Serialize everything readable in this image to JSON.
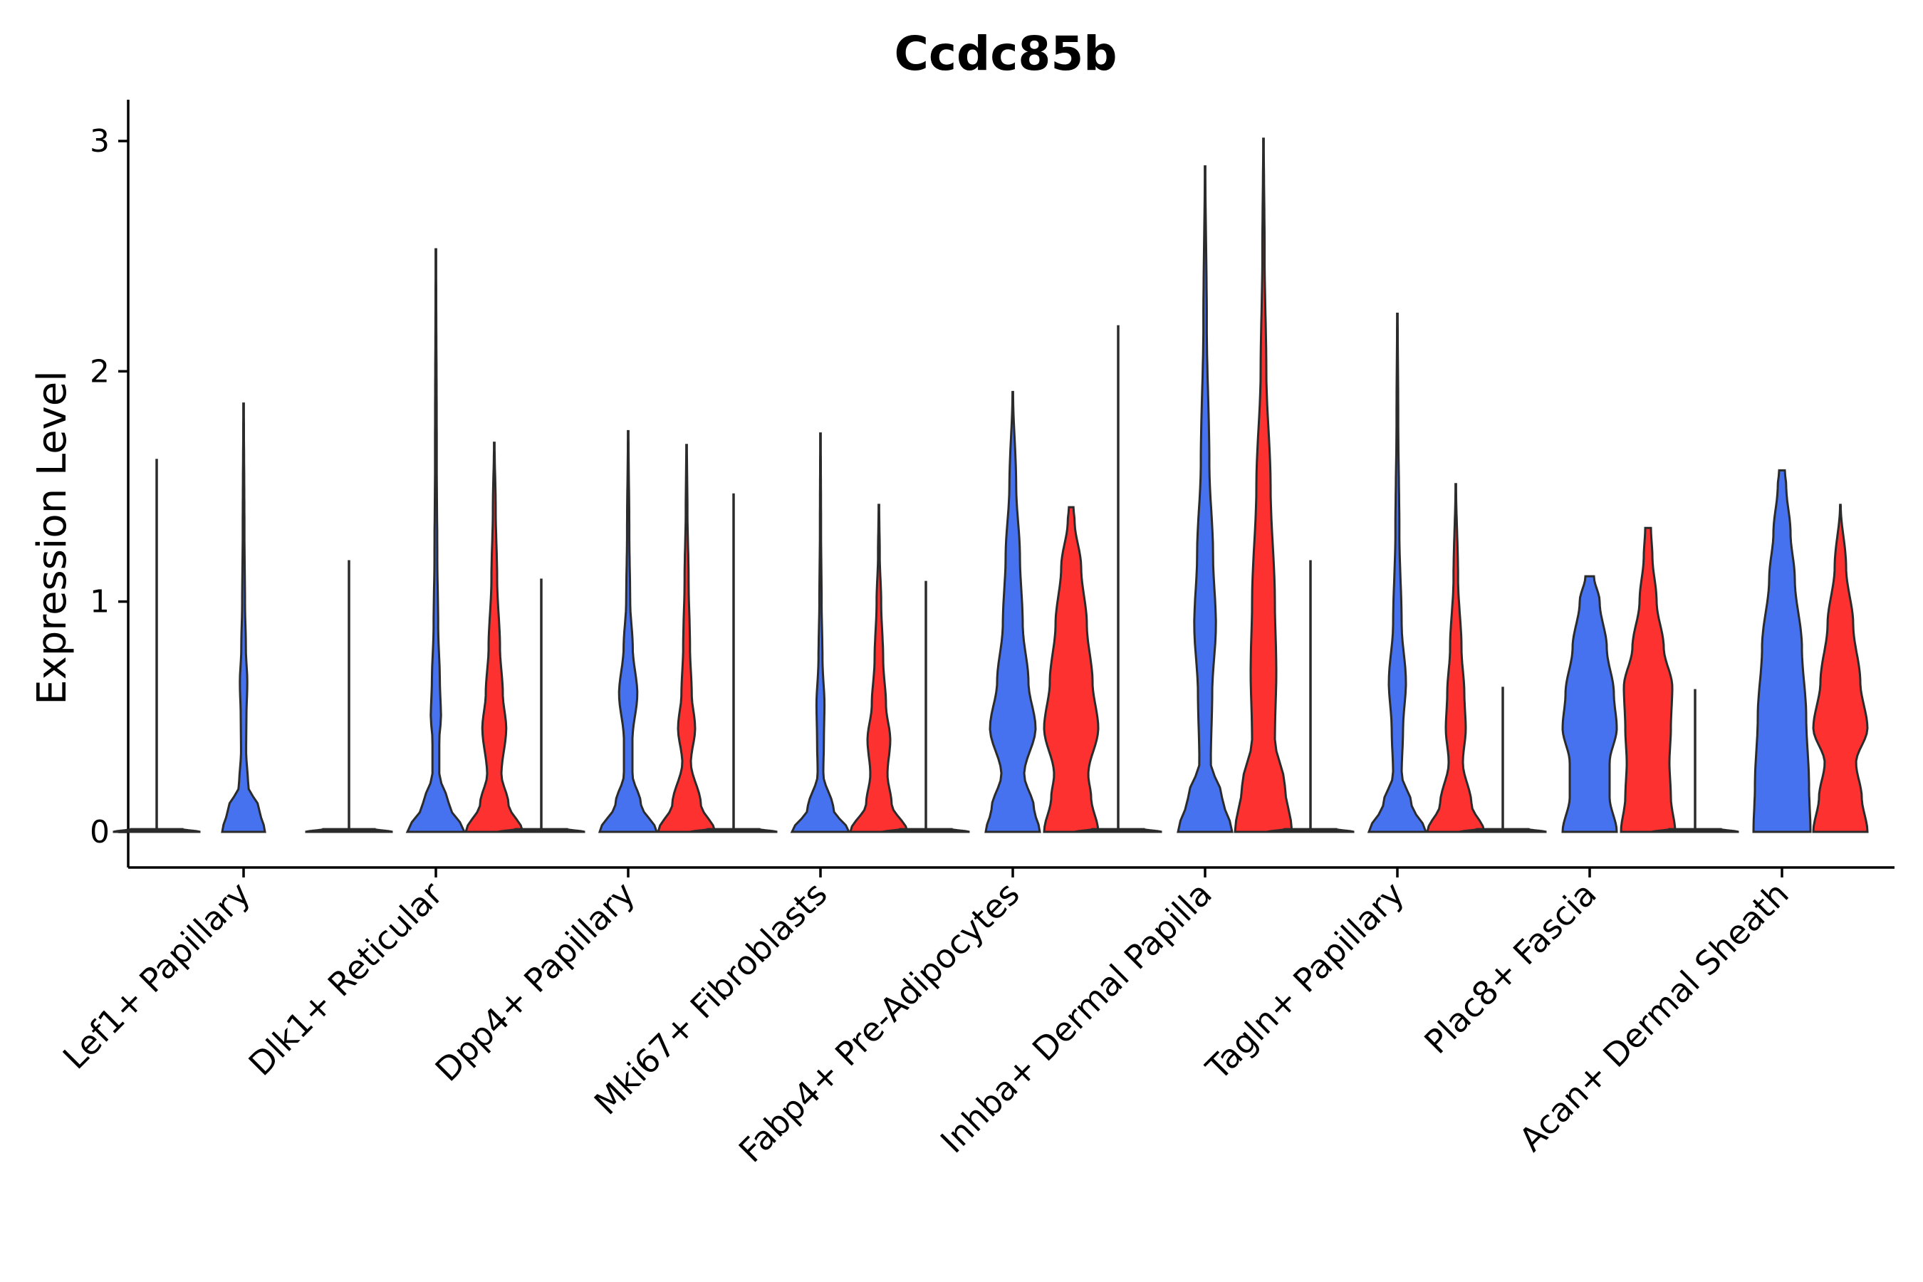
{
  "chart_data": {
    "type": "violin",
    "title": "Ccdc85b",
    "xlabel": "",
    "ylabel": "Expression Level",
    "ylim": [
      -0.15,
      3.15
    ],
    "yticks": [
      0,
      1,
      2,
      3
    ],
    "grid": false,
    "legend": "none",
    "colors": {
      "groupA": "#4671ef",
      "groupB": "#fe3131",
      "outline": "#2b2b2b"
    },
    "series_order": [
      "none",
      "A",
      "B"
    ],
    "categories": [
      {
        "label": "Lef1+ Papillary",
        "violins": [
          {
            "group": "none",
            "max": 1.62,
            "profile": [
              [
                0,
                1.0
              ],
              [
                0.01,
                0.03
              ],
              [
                1.62,
                0.02
              ]
            ]
          },
          {
            "group": "A",
            "max": 1.86,
            "profile": [
              [
                0,
                0.75
              ],
              [
                0.1,
                0.55
              ],
              [
                0.2,
                0.16
              ],
              [
                0.35,
                0.09
              ],
              [
                0.5,
                0.1
              ],
              [
                0.65,
                0.13
              ],
              [
                0.8,
                0.08
              ],
              [
                1.0,
                0.05
              ],
              [
                1.3,
                0.03
              ],
              [
                1.86,
                0.01
              ]
            ]
          }
        ]
      },
      {
        "label": "Dlk1+ Reticular",
        "violins": [
          {
            "group": "none",
            "max": 1.18,
            "profile": [
              [
                0,
                1.0
              ],
              [
                0.01,
                0.03
              ],
              [
                1.18,
                0.02
              ]
            ]
          },
          {
            "group": "A",
            "max": 2.53,
            "profile": [
              [
                0,
                1.0
              ],
              [
                0.12,
                0.45
              ],
              [
                0.25,
                0.12
              ],
              [
                0.4,
                0.12
              ],
              [
                0.5,
                0.18
              ],
              [
                0.65,
                0.14
              ],
              [
                0.9,
                0.08
              ],
              [
                1.2,
                0.05
              ],
              [
                1.6,
                0.03
              ],
              [
                2.53,
                0.01
              ]
            ]
          },
          {
            "group": "B",
            "max": 1.69,
            "profile": [
              [
                0,
                1.0
              ],
              [
                0.12,
                0.5
              ],
              [
                0.25,
                0.25
              ],
              [
                0.45,
                0.42
              ],
              [
                0.6,
                0.3
              ],
              [
                0.8,
                0.2
              ],
              [
                1.1,
                0.1
              ],
              [
                1.4,
                0.05
              ],
              [
                1.69,
                0.01
              ]
            ]
          }
        ]
      },
      {
        "label": "Dpp4+ Papillary",
        "violins": [
          {
            "group": "none",
            "max": 1.1,
            "profile": [
              [
                0,
                1.0
              ],
              [
                0.01,
                0.03
              ],
              [
                1.1,
                0.02
              ]
            ]
          },
          {
            "group": "A",
            "max": 1.74,
            "profile": [
              [
                0,
                1.0
              ],
              [
                0.12,
                0.45
              ],
              [
                0.25,
                0.15
              ],
              [
                0.4,
                0.15
              ],
              [
                0.6,
                0.32
              ],
              [
                0.8,
                0.16
              ],
              [
                1.0,
                0.07
              ],
              [
                1.3,
                0.04
              ],
              [
                1.74,
                0.01
              ]
            ]
          },
          {
            "group": "B",
            "max": 1.68,
            "profile": [
              [
                0,
                1.0
              ],
              [
                0.12,
                0.5
              ],
              [
                0.3,
                0.15
              ],
              [
                0.45,
                0.3
              ],
              [
                0.6,
                0.18
              ],
              [
                0.8,
                0.12
              ],
              [
                1.1,
                0.07
              ],
              [
                1.4,
                0.03
              ],
              [
                1.68,
                0.01
              ]
            ]
          }
        ]
      },
      {
        "label": "Mki67+ Fibroblasts",
        "violins": [
          {
            "group": "none",
            "max": 1.47,
            "profile": [
              [
                0,
                1.0
              ],
              [
                0.01,
                0.03
              ],
              [
                1.47,
                0.02
              ]
            ]
          },
          {
            "group": "A",
            "max": 1.73,
            "profile": [
              [
                0,
                1.0
              ],
              [
                0.1,
                0.45
              ],
              [
                0.25,
                0.1
              ],
              [
                0.4,
                0.12
              ],
              [
                0.55,
                0.14
              ],
              [
                0.75,
                0.07
              ],
              [
                1.0,
                0.04
              ],
              [
                1.3,
                0.02
              ],
              [
                1.73,
                0.01
              ]
            ]
          },
          {
            "group": "B",
            "max": 1.42,
            "profile": [
              [
                0,
                1.0
              ],
              [
                0.12,
                0.45
              ],
              [
                0.25,
                0.3
              ],
              [
                0.4,
                0.4
              ],
              [
                0.55,
                0.25
              ],
              [
                0.75,
                0.15
              ],
              [
                1.0,
                0.08
              ],
              [
                1.2,
                0.03
              ],
              [
                1.42,
                0.01
              ]
            ]
          }
        ]
      },
      {
        "label": "Fabp4+ Pre-Adipocytes",
        "violins": [
          {
            "group": "none",
            "max": 1.09,
            "profile": [
              [
                0,
                1.0
              ],
              [
                0.01,
                0.03
              ],
              [
                1.09,
                0.02
              ]
            ]
          },
          {
            "group": "A",
            "max": 1.91,
            "profile": [
              [
                0,
                0.95
              ],
              [
                0.1,
                0.75
              ],
              [
                0.25,
                0.4
              ],
              [
                0.45,
                0.8
              ],
              [
                0.65,
                0.55
              ],
              [
                0.9,
                0.35
              ],
              [
                1.2,
                0.25
              ],
              [
                1.5,
                0.12
              ],
              [
                1.91,
                0.01
              ]
            ]
          },
          {
            "group": "B",
            "max": 1.41,
            "profile": [
              [
                0,
                0.95
              ],
              [
                0.15,
                0.7
              ],
              [
                0.25,
                0.6
              ],
              [
                0.45,
                0.95
              ],
              [
                0.65,
                0.75
              ],
              [
                0.9,
                0.55
              ],
              [
                1.15,
                0.35
              ],
              [
                1.35,
                0.12
              ],
              [
                1.41,
                0.08
              ]
            ]
          }
        ]
      },
      {
        "label": "Inhba+ Dermal Papilla",
        "violins": [
          {
            "group": "none",
            "max": 2.2,
            "profile": [
              [
                0,
                1.0
              ],
              [
                0.01,
                0.03
              ],
              [
                2.2,
                0.02
              ]
            ]
          },
          {
            "group": "A",
            "max": 2.89,
            "profile": [
              [
                0,
                0.95
              ],
              [
                0.15,
                0.6
              ],
              [
                0.3,
                0.2
              ],
              [
                0.6,
                0.25
              ],
              [
                0.9,
                0.38
              ],
              [
                1.2,
                0.28
              ],
              [
                1.6,
                0.15
              ],
              [
                2.2,
                0.06
              ],
              [
                2.89,
                0.01
              ]
            ]
          },
          {
            "group": "B",
            "max": 3.01,
            "profile": [
              [
                0,
                1.0
              ],
              [
                0.2,
                0.75
              ],
              [
                0.4,
                0.4
              ],
              [
                0.7,
                0.45
              ],
              [
                1.0,
                0.4
              ],
              [
                1.5,
                0.25
              ],
              [
                2.0,
                0.1
              ],
              [
                2.5,
                0.04
              ],
              [
                3.01,
                0.01
              ]
            ]
          }
        ]
      },
      {
        "label": "Tagln+ Papillary",
        "violins": [
          {
            "group": "none",
            "max": 1.18,
            "profile": [
              [
                0,
                1.0
              ],
              [
                0.01,
                0.03
              ],
              [
                1.18,
                0.02
              ]
            ]
          },
          {
            "group": "A",
            "max": 2.25,
            "profile": [
              [
                0,
                1.0
              ],
              [
                0.12,
                0.5
              ],
              [
                0.25,
                0.15
              ],
              [
                0.45,
                0.2
              ],
              [
                0.65,
                0.3
              ],
              [
                0.9,
                0.15
              ],
              [
                1.3,
                0.07
              ],
              [
                1.8,
                0.03
              ],
              [
                2.25,
                0.01
              ]
            ]
          },
          {
            "group": "B",
            "max": 1.51,
            "profile": [
              [
                0,
                1.0
              ],
              [
                0.12,
                0.55
              ],
              [
                0.3,
                0.25
              ],
              [
                0.45,
                0.35
              ],
              [
                0.6,
                0.3
              ],
              [
                0.8,
                0.2
              ],
              [
                1.1,
                0.08
              ],
              [
                1.51,
                0.01
              ]
            ]
          }
        ]
      },
      {
        "label": "Plac8+ Fascia",
        "violins": [
          {
            "group": "none",
            "max": 0.63,
            "profile": [
              [
                0,
                1.0
              ],
              [
                0.01,
                0.03
              ],
              [
                0.63,
                0.02
              ]
            ]
          },
          {
            "group": "A",
            "max": 1.11,
            "profile": [
              [
                0,
                0.95
              ],
              [
                0.15,
                0.7
              ],
              [
                0.3,
                0.7
              ],
              [
                0.45,
                0.95
              ],
              [
                0.6,
                0.85
              ],
              [
                0.8,
                0.6
              ],
              [
                1.0,
                0.35
              ],
              [
                1.11,
                0.15
              ]
            ]
          },
          {
            "group": "B",
            "max": 1.32,
            "profile": [
              [
                0,
                0.95
              ],
              [
                0.15,
                0.8
              ],
              [
                0.3,
                0.75
              ],
              [
                0.45,
                0.8
              ],
              [
                0.63,
                0.85
              ],
              [
                0.8,
                0.55
              ],
              [
                1.0,
                0.3
              ],
              [
                1.2,
                0.15
              ],
              [
                1.32,
                0.1
              ]
            ]
          }
        ]
      },
      {
        "label": "Acan+ Dermal Sheath",
        "violins": [
          {
            "group": "none",
            "max": 0.62,
            "profile": [
              [
                0,
                1.0
              ],
              [
                0.01,
                0.03
              ],
              [
                0.62,
                0.02
              ]
            ]
          },
          {
            "group": "A",
            "max": 1.57,
            "profile": [
              [
                0,
                1.0
              ],
              [
                0.2,
                0.95
              ],
              [
                0.5,
                0.85
              ],
              [
                0.8,
                0.7
              ],
              [
                1.1,
                0.45
              ],
              [
                1.3,
                0.3
              ],
              [
                1.5,
                0.15
              ],
              [
                1.57,
                0.1
              ]
            ]
          },
          {
            "group": "B",
            "max": 1.42,
            "profile": [
              [
                0,
                0.95
              ],
              [
                0.15,
                0.75
              ],
              [
                0.3,
                0.55
              ],
              [
                0.45,
                0.95
              ],
              [
                0.65,
                0.7
              ],
              [
                0.9,
                0.45
              ],
              [
                1.15,
                0.2
              ],
              [
                1.42,
                0.01
              ]
            ]
          }
        ]
      }
    ]
  }
}
